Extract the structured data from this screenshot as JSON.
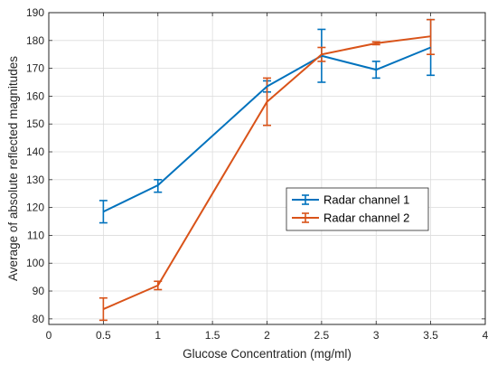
{
  "chart_data": {
    "type": "line",
    "title": "",
    "xlabel": "Glucose Concentration (mg/ml)",
    "ylabel": "Average of absolute reflected magnitudes",
    "xlim": [
      0,
      4
    ],
    "ylim": [
      78,
      190
    ],
    "x_ticks": [
      0,
      0.5,
      1,
      1.5,
      2,
      2.5,
      3,
      3.5,
      4
    ],
    "x_tick_labels": [
      "0",
      "0.5",
      "1",
      "1.5",
      "2",
      "2.5",
      "3",
      "3.5",
      "4"
    ],
    "y_ticks": [
      80,
      90,
      100,
      110,
      120,
      130,
      140,
      150,
      160,
      170,
      180,
      190
    ],
    "y_tick_labels": [
      "80",
      "90",
      "100",
      "110",
      "120",
      "130",
      "140",
      "150",
      "160",
      "170",
      "180",
      "190"
    ],
    "grid": true,
    "legend_position": "center-right",
    "x": [
      0.5,
      1,
      2,
      2.5,
      3,
      3.5
    ],
    "series": [
      {
        "name": "Radar channel 1",
        "color": "#0072BD",
        "values": [
          118.5,
          128,
          163.5,
          174.5,
          169.5,
          177.5
        ],
        "err_low": [
          114.5,
          125.5,
          161.5,
          165,
          166.5,
          167.5
        ],
        "err_high": [
          122.5,
          130,
          165.5,
          184,
          172.5,
          187.5
        ]
      },
      {
        "name": "Radar channel 2",
        "color": "#D95319",
        "values": [
          83.5,
          92,
          158,
          175,
          179,
          181.5
        ],
        "err_low": [
          79.5,
          90.5,
          149.5,
          172.5,
          178.5,
          175
        ],
        "err_high": [
          87.5,
          93.5,
          166.5,
          177.5,
          179.5,
          187.5
        ]
      }
    ]
  }
}
